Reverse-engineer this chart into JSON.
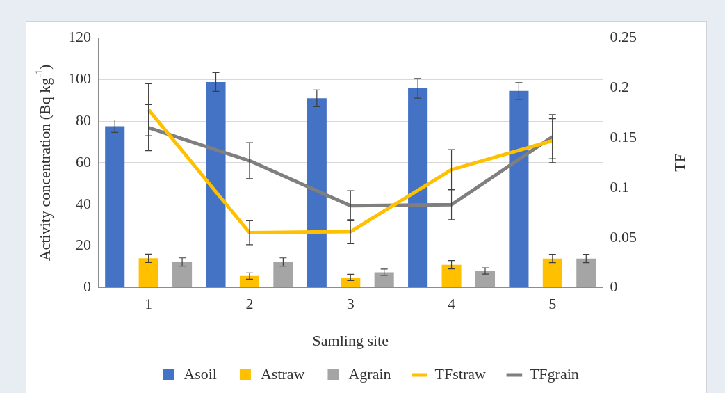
{
  "chart_data": {
    "type": "bar",
    "xlabel": "Samling site",
    "ylabel": "Activity concentration (Bq kg$^{-1}$)",
    "y2label": "TF",
    "categories": [
      "1",
      "2",
      "3",
      "4",
      "5"
    ],
    "series": [
      {
        "name": "Asoil",
        "color": "#4472c4",
        "values": [
          77.5,
          98.7,
          90.9,
          95.7,
          94.4
        ],
        "errors": [
          3,
          4.5,
          4,
          4.7,
          4
        ]
      },
      {
        "name": "Astraw",
        "color": "#ffc000",
        "values": [
          14.1,
          5.6,
          4.9,
          11,
          14
        ],
        "errors": [
          2,
          1.5,
          1.5,
          2,
          2
        ]
      },
      {
        "name": "Agrain",
        "color": "#a5a5a5",
        "values": [
          12.3,
          12.3,
          7.4,
          8,
          14
        ],
        "errors": [
          2,
          2,
          1.5,
          1.5,
          2
        ]
      },
      {
        "name": "TFstraw",
        "type": "line",
        "axis": "y2",
        "color": "#ffc000",
        "values": [
          0.178,
          0.055,
          0.056,
          0.118,
          0.147
        ],
        "errors": [
          0.026,
          0.012,
          0.012,
          0.02,
          0.022
        ]
      },
      {
        "name": "TFgrain",
        "type": "line",
        "axis": "y2",
        "color": "#7f7f7f",
        "values": [
          0.16,
          0.127,
          0.082,
          0.083,
          0.151
        ],
        "errors": [
          0.023,
          0.018,
          0.015,
          0.015,
          0.022
        ]
      }
    ],
    "ylim": [
      0,
      120
    ],
    "yticks": [
      0,
      20,
      40,
      60,
      80,
      100,
      120
    ],
    "y2lim": [
      0,
      0.25
    ],
    "y2ticks": [
      0,
      0.05,
      0.1,
      0.15,
      0.2,
      0.25
    ],
    "grid": "y",
    "legend": "bottom",
    "marker": "none",
    "line_style": "solid"
  }
}
